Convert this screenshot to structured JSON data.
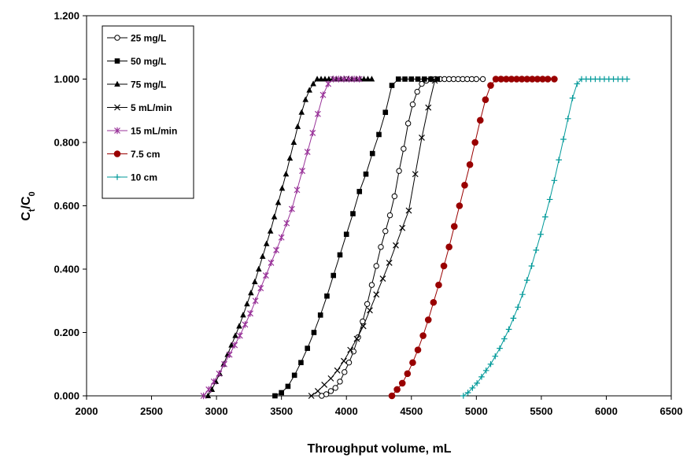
{
  "chart_data": {
    "type": "line",
    "xlabel": "Throughput volume, mL",
    "ylabel": {
      "main": "C",
      "sub1": "t",
      "sep": "/C",
      "sub2": "0"
    },
    "xlim": [
      2000,
      6500
    ],
    "ylim": [
      0,
      1.2
    ],
    "xticks": [
      2000,
      2500,
      3000,
      3500,
      4000,
      4500,
      5000,
      5500,
      6000,
      6500
    ],
    "yticks": [
      "0.000",
      "0.200",
      "0.400",
      "0.600",
      "0.800",
      "1.000",
      "1.200"
    ],
    "ytick_values": [
      0,
      0.2,
      0.4,
      0.6,
      0.8,
      1.0,
      1.2
    ],
    "grid": false,
    "legend_position": "top-left",
    "series": [
      {
        "name": "25 mg/L",
        "color": "#000000",
        "marker": "circle-open",
        "x": [
          3810,
          3845,
          3880,
          3915,
          3950,
          3985,
          4020,
          4055,
          4090,
          4125,
          4160,
          4195,
          4230,
          4265,
          4300,
          4335,
          4370,
          4405,
          4440,
          4475,
          4510,
          4545,
          4580,
          4615,
          4650,
          4685,
          4720,
          4755,
          4790,
          4825,
          4860,
          4895,
          4930,
          4965,
          5000,
          5050
        ],
        "y": [
          0.0,
          0.005,
          0.015,
          0.025,
          0.045,
          0.075,
          0.105,
          0.14,
          0.185,
          0.235,
          0.29,
          0.35,
          0.41,
          0.47,
          0.52,
          0.57,
          0.63,
          0.71,
          0.78,
          0.86,
          0.92,
          0.96,
          0.985,
          0.995,
          1.0,
          1.0,
          1.0,
          1.0,
          1.0,
          1.0,
          1.0,
          1.0,
          1.0,
          1.0,
          1.0,
          1.0
        ]
      },
      {
        "name": "50 mg/L",
        "color": "#000000",
        "marker": "square-filled",
        "x": [
          3450,
          3500,
          3550,
          3600,
          3650,
          3700,
          3750,
          3800,
          3850,
          3900,
          3950,
          4000,
          4050,
          4100,
          4150,
          4200,
          4250,
          4300,
          4350,
          4400,
          4450,
          4500,
          4550,
          4600,
          4650,
          4700
        ],
        "y": [
          0.0,
          0.01,
          0.03,
          0.065,
          0.105,
          0.15,
          0.2,
          0.255,
          0.315,
          0.38,
          0.445,
          0.51,
          0.575,
          0.645,
          0.7,
          0.765,
          0.825,
          0.895,
          0.98,
          1.0,
          1.0,
          1.0,
          1.0,
          1.0,
          1.0,
          1.0
        ]
      },
      {
        "name": "75 mg/L",
        "color": "#000000",
        "marker": "triangle-filled",
        "x": [
          2935,
          2965,
          2995,
          3025,
          3055,
          3085,
          3115,
          3145,
          3175,
          3205,
          3235,
          3265,
          3295,
          3325,
          3355,
          3385,
          3415,
          3445,
          3475,
          3505,
          3535,
          3565,
          3595,
          3625,
          3655,
          3685,
          3715,
          3745,
          3775,
          3805,
          3835,
          3865,
          3895,
          3925,
          3955,
          3985,
          4015,
          4045,
          4075,
          4105,
          4135,
          4165,
          4195
        ],
        "y": [
          0.0,
          0.02,
          0.045,
          0.07,
          0.1,
          0.13,
          0.16,
          0.19,
          0.22,
          0.255,
          0.29,
          0.325,
          0.36,
          0.4,
          0.44,
          0.48,
          0.52,
          0.565,
          0.61,
          0.655,
          0.7,
          0.75,
          0.8,
          0.85,
          0.895,
          0.935,
          0.965,
          0.985,
          1.0,
          1.0,
          1.0,
          1.0,
          1.0,
          1.0,
          1.0,
          1.0,
          1.0,
          1.0,
          1.0,
          1.0,
          1.0,
          1.0,
          1.0
        ]
      },
      {
        "name": "5 mL/min",
        "color": "#000000",
        "marker": "x",
        "x": [
          3730,
          3780,
          3830,
          3880,
          3930,
          3980,
          4030,
          4080,
          4130,
          4180,
          4230,
          4280,
          4330,
          4380,
          4430,
          4480,
          4530,
          4580,
          4630,
          4680
        ],
        "y": [
          0.0,
          0.015,
          0.035,
          0.055,
          0.08,
          0.11,
          0.145,
          0.18,
          0.22,
          0.27,
          0.32,
          0.37,
          0.42,
          0.475,
          0.53,
          0.585,
          0.7,
          0.815,
          0.91,
          0.995
        ]
      },
      {
        "name": "15 mL/min",
        "color": "#993399",
        "marker": "asterisk",
        "x": [
          2900,
          2940,
          2980,
          3020,
          3060,
          3100,
          3140,
          3180,
          3220,
          3260,
          3300,
          3340,
          3380,
          3420,
          3460,
          3500,
          3540,
          3580,
          3620,
          3660,
          3700,
          3740,
          3780,
          3820,
          3860,
          3900,
          3940,
          3980,
          4020,
          4060,
          4100
        ],
        "y": [
          0.0,
          0.02,
          0.045,
          0.07,
          0.1,
          0.13,
          0.16,
          0.19,
          0.225,
          0.26,
          0.3,
          0.34,
          0.38,
          0.42,
          0.46,
          0.5,
          0.545,
          0.59,
          0.65,
          0.71,
          0.77,
          0.83,
          0.89,
          0.95,
          0.985,
          1.0,
          1.0,
          1.0,
          1.0,
          1.0,
          1.0
        ]
      },
      {
        "name": "7.5 cm",
        "color": "#990000",
        "marker": "circle-filled",
        "x": [
          4350,
          4390,
          4430,
          4470,
          4510,
          4550,
          4590,
          4630,
          4670,
          4710,
          4750,
          4790,
          4830,
          4870,
          4910,
          4950,
          4990,
          5030,
          5070,
          5110,
          5150,
          5190,
          5230,
          5270,
          5310,
          5350,
          5390,
          5430,
          5470,
          5510,
          5550,
          5600
        ],
        "y": [
          0.0,
          0.02,
          0.04,
          0.07,
          0.105,
          0.145,
          0.19,
          0.24,
          0.295,
          0.35,
          0.41,
          0.47,
          0.535,
          0.6,
          0.665,
          0.73,
          0.8,
          0.87,
          0.935,
          0.98,
          1.0,
          1.0,
          1.0,
          1.0,
          1.0,
          1.0,
          1.0,
          1.0,
          1.0,
          1.0,
          1.0,
          1.0
        ]
      },
      {
        "name": "10 cm",
        "color": "#009999",
        "marker": "plus",
        "x": [
          4900,
          4935,
          4970,
          5005,
          5040,
          5075,
          5110,
          5145,
          5180,
          5215,
          5250,
          5285,
          5320,
          5355,
          5390,
          5425,
          5460,
          5495,
          5530,
          5565,
          5600,
          5635,
          5670,
          5705,
          5740,
          5775,
          5810,
          5845,
          5880,
          5915,
          5950,
          5985,
          6020,
          6055,
          6090,
          6125,
          6160
        ],
        "y": [
          0.0,
          0.01,
          0.025,
          0.04,
          0.06,
          0.08,
          0.1,
          0.125,
          0.15,
          0.18,
          0.21,
          0.245,
          0.28,
          0.32,
          0.365,
          0.41,
          0.46,
          0.51,
          0.565,
          0.62,
          0.68,
          0.745,
          0.81,
          0.875,
          0.94,
          0.985,
          1.0,
          1.0,
          1.0,
          1.0,
          1.0,
          1.0,
          1.0,
          1.0,
          1.0,
          1.0,
          1.0
        ]
      }
    ]
  }
}
